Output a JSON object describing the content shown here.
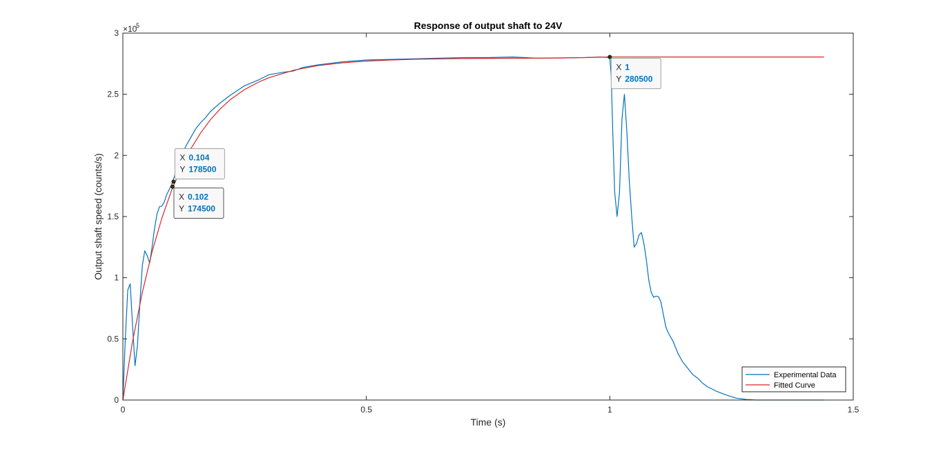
{
  "chart_data": {
    "type": "line",
    "title": "Response of output shaft to 24V",
    "xlabel": "Time (s)",
    "ylabel": "Output shaft speed (counts/s)",
    "y_exponent_label": "×10",
    "y_exponent": "5",
    "y_scale_factor": 100000,
    "xlim": [
      0,
      1.5
    ],
    "ylim": [
      0,
      300000
    ],
    "x_ticks": [
      0,
      0.5,
      1,
      1.5
    ],
    "x_tick_labels": [
      "0",
      "0.5",
      "1",
      "1.5"
    ],
    "y_ticks": [
      0,
      50000,
      100000,
      150000,
      200000,
      250000,
      300000
    ],
    "y_tick_labels": [
      "0",
      "0.5",
      "1",
      "1.5",
      "2",
      "2.5",
      "3"
    ],
    "grid": false,
    "legend_position": "bottom-right",
    "series": [
      {
        "name": "Experimental Data",
        "color": "#0072bd",
        "x": [
          0,
          0.005,
          0.01,
          0.015,
          0.02,
          0.025,
          0.03,
          0.035,
          0.04,
          0.045,
          0.05,
          0.055,
          0.06,
          0.065,
          0.07,
          0.075,
          0.08,
          0.085,
          0.09,
          0.095,
          0.1,
          0.105,
          0.11,
          0.115,
          0.12,
          0.13,
          0.14,
          0.15,
          0.16,
          0.17,
          0.18,
          0.2,
          0.22,
          0.25,
          0.28,
          0.3,
          0.33,
          0.35,
          0.37,
          0.4,
          0.45,
          0.5,
          0.55,
          0.6,
          0.65,
          0.7,
          0.75,
          0.8,
          0.85,
          0.9,
          0.95,
          0.98,
          1.0,
          1.003,
          1.006,
          1.01,
          1.015,
          1.02,
          1.025,
          1.03,
          1.035,
          1.04,
          1.045,
          1.05,
          1.055,
          1.06,
          1.065,
          1.07,
          1.075,
          1.08,
          1.085,
          1.09,
          1.095,
          1.1,
          1.105,
          1.11,
          1.115,
          1.12,
          1.13,
          1.14,
          1.15,
          1.16,
          1.17,
          1.18,
          1.19,
          1.2,
          1.22,
          1.24,
          1.26,
          1.28,
          1.3,
          1.32,
          1.35,
          1.4,
          1.44
        ],
        "y": [
          0,
          50000,
          90000,
          95000,
          60000,
          28000,
          45000,
          80000,
          110000,
          122000,
          118000,
          112000,
          125000,
          140000,
          152000,
          158000,
          158500,
          162000,
          168000,
          172000,
          176000,
          182000,
          188000,
          194000,
          200000,
          208000,
          215000,
          222000,
          227000,
          231000,
          236000,
          243000,
          249000,
          257000,
          262000,
          266000,
          268000,
          269000,
          272000,
          274000,
          276500,
          278000,
          278500,
          279000,
          279500,
          280000,
          280000,
          280500,
          279500,
          279800,
          280000,
          280500,
          280000,
          265000,
          220000,
          170000,
          150000,
          170000,
          230000,
          250000,
          220000,
          180000,
          150000,
          125000,
          128000,
          135000,
          137000,
          128000,
          115000,
          98000,
          88000,
          84000,
          85000,
          84500,
          80000,
          70000,
          60000,
          55000,
          48000,
          38000,
          31000,
          26000,
          21000,
          18000,
          14000,
          11000,
          7000,
          4000,
          1500,
          500,
          0,
          0,
          0,
          0,
          0
        ]
      },
      {
        "name": "Fitted Curve",
        "color": "#d62728",
        "x": [
          0,
          0.02,
          0.04,
          0.06,
          0.08,
          0.1,
          0.12,
          0.14,
          0.16,
          0.18,
          0.2,
          0.22,
          0.25,
          0.28,
          0.3,
          0.35,
          0.4,
          0.45,
          0.5,
          0.55,
          0.6,
          0.7,
          0.8,
          0.9,
          1.0,
          1.1,
          1.2,
          1.3,
          1.44
        ],
        "y": [
          0,
          48200,
          88100,
          121200,
          148600,
          171300,
          190100,
          205700,
          218600,
          229300,
          238100,
          245400,
          253900,
          260200,
          263500,
          269600,
          273400,
          275700,
          277100,
          278000,
          278600,
          279200,
          279500,
          279600,
          280500,
          280500,
          280500,
          280500,
          280500
        ]
      }
    ],
    "datatips": [
      {
        "x_label": "X",
        "x_value": "0.104",
        "y_label": "Y",
        "y_value": "178500",
        "x": 0.104,
        "y": 178500
      },
      {
        "x_label": "X",
        "x_value": "0.102",
        "y_label": "Y",
        "y_value": "174500",
        "x": 0.102,
        "y": 174500
      },
      {
        "x_label": "X",
        "x_value": "1",
        "y_label": "Y",
        "y_value": "280500",
        "x": 1,
        "y": 280500
      }
    ]
  }
}
